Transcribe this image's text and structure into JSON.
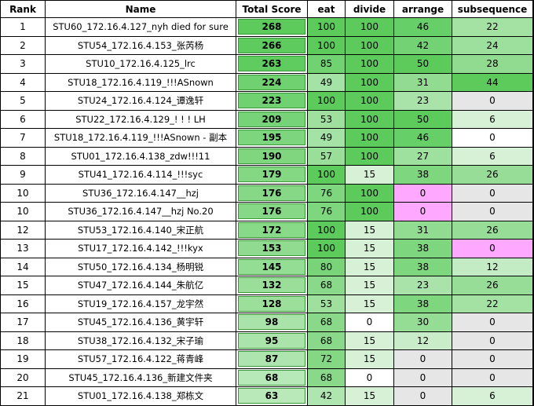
{
  "colors": {
    "header_bg": "#ffffff",
    "grid": "#000000",
    "max_green": "#5ccb5c",
    "pink": "#ffa8ff",
    "gray": "#e6e6e6",
    "white": "#ffffff"
  },
  "columns": [
    "Rank",
    "Name",
    "Total Score",
    "eat",
    "divide",
    "arrange",
    "subsequence"
  ],
  "rows": [
    {
      "rank": "1",
      "name": "STU60_172.16.4.127_nyh died for sure",
      "total": "268",
      "eat": "100",
      "divide": "100",
      "arrange": "46",
      "subsequence": "22"
    },
    {
      "rank": "2",
      "name": "STU54_172.16.4.153_张芮杨",
      "total": "266",
      "eat": "100",
      "divide": "100",
      "arrange": "42",
      "subsequence": "24"
    },
    {
      "rank": "3",
      "name": "STU10_172.16.4.125_lrc",
      "total": "263",
      "eat": "85",
      "divide": "100",
      "arrange": "50",
      "subsequence": "28"
    },
    {
      "rank": "4",
      "name": "STU18_172.16.4.119_!!!ASnown",
      "total": "224",
      "eat": "49",
      "divide": "100",
      "arrange": "31",
      "subsequence": "44"
    },
    {
      "rank": "5",
      "name": "STU24_172.16.4.124_谭逸轩",
      "total": "223",
      "eat": "100",
      "divide": "100",
      "arrange": "23",
      "subsequence": "0"
    },
    {
      "rank": "6",
      "name": "STU22_172.16.4.129_! ! ! LH",
      "total": "209",
      "eat": "53",
      "divide": "100",
      "arrange": "50",
      "subsequence": "6"
    },
    {
      "rank": "7",
      "name": "STU18_172.16.4.119_!!!ASnown - 副本",
      "total": "195",
      "eat": "49",
      "divide": "100",
      "arrange": "46",
      "subsequence": "0"
    },
    {
      "rank": "8",
      "name": "STU01_172.16.4.138_zdw!!!11",
      "total": "190",
      "eat": "57",
      "divide": "100",
      "arrange": "27",
      "subsequence": "6"
    },
    {
      "rank": "9",
      "name": "STU41_172.16.4.114_!!!syc",
      "total": "179",
      "eat": "100",
      "divide": "15",
      "arrange": "38",
      "subsequence": "26"
    },
    {
      "rank": "10",
      "name": "STU36_172.16.4.147__hzj",
      "total": "176",
      "eat": "76",
      "divide": "100",
      "arrange": "0",
      "subsequence": "0"
    },
    {
      "rank": "10",
      "name": "STU36_172.16.4.147__hzj No.20",
      "total": "176",
      "eat": "76",
      "divide": "100",
      "arrange": "0",
      "subsequence": "0"
    },
    {
      "rank": "12",
      "name": "STU53_172.16.4.140_宋正航",
      "total": "172",
      "eat": "100",
      "divide": "15",
      "arrange": "31",
      "subsequence": "26"
    },
    {
      "rank": "13",
      "name": "STU17_172.16.4.142_!!!kyx",
      "total": "153",
      "eat": "100",
      "divide": "15",
      "arrange": "38",
      "subsequence": "0"
    },
    {
      "rank": "14",
      "name": "STU50_172.16.4.134_杨明锐",
      "total": "145",
      "eat": "80",
      "divide": "15",
      "arrange": "38",
      "subsequence": "12"
    },
    {
      "rank": "15",
      "name": "STU47_172.16.4.144_朱航亿",
      "total": "132",
      "eat": "68",
      "divide": "15",
      "arrange": "23",
      "subsequence": "26"
    },
    {
      "rank": "16",
      "name": "STU19_172.16.4.157_龙宇然",
      "total": "128",
      "eat": "53",
      "divide": "15",
      "arrange": "38",
      "subsequence": "22"
    },
    {
      "rank": "17",
      "name": "STU45_172.16.4.136_黄宇轩",
      "total": "98",
      "eat": "68",
      "divide": "0",
      "arrange": "30",
      "subsequence": "0"
    },
    {
      "rank": "18",
      "name": "STU38_172.16.4.132_宋子瑜",
      "total": "95",
      "eat": "68",
      "divide": "15",
      "arrange": "12",
      "subsequence": "0"
    },
    {
      "rank": "19",
      "name": "STU57_172.16.4.122_蒋青峰",
      "total": "87",
      "eat": "72",
      "divide": "15",
      "arrange": "0",
      "subsequence": "0"
    },
    {
      "rank": "20",
      "name": "STU45_172.16.4.136_新建文件夹",
      "total": "68",
      "eat": "68",
      "divide": "0",
      "arrange": "0",
      "subsequence": "0"
    },
    {
      "rank": "21",
      "name": "STU01_172.16.4.138_郑栋文",
      "total": "63",
      "eat": "42",
      "divide": "15",
      "arrange": "0",
      "subsequence": "6"
    }
  ],
  "highlights": {
    "pink_cells": [
      [
        9,
        "arrange"
      ],
      [
        10,
        "arrange"
      ],
      [
        12,
        "subsequence"
      ]
    ],
    "gray_zero_cells": [
      [
        4,
        "subsequence"
      ],
      [
        9,
        "subsequence"
      ],
      [
        10,
        "subsequence"
      ],
      [
        16,
        "subsequence"
      ],
      [
        17,
        "subsequence"
      ],
      [
        18,
        "arrange"
      ],
      [
        18,
        "subsequence"
      ],
      [
        19,
        "arrange"
      ],
      [
        19,
        "subsequence"
      ],
      [
        20,
        "arrange"
      ]
    ],
    "white_zero_cells": [
      [
        6,
        "subsequence"
      ],
      [
        16,
        "divide"
      ],
      [
        19,
        "divide"
      ]
    ]
  }
}
